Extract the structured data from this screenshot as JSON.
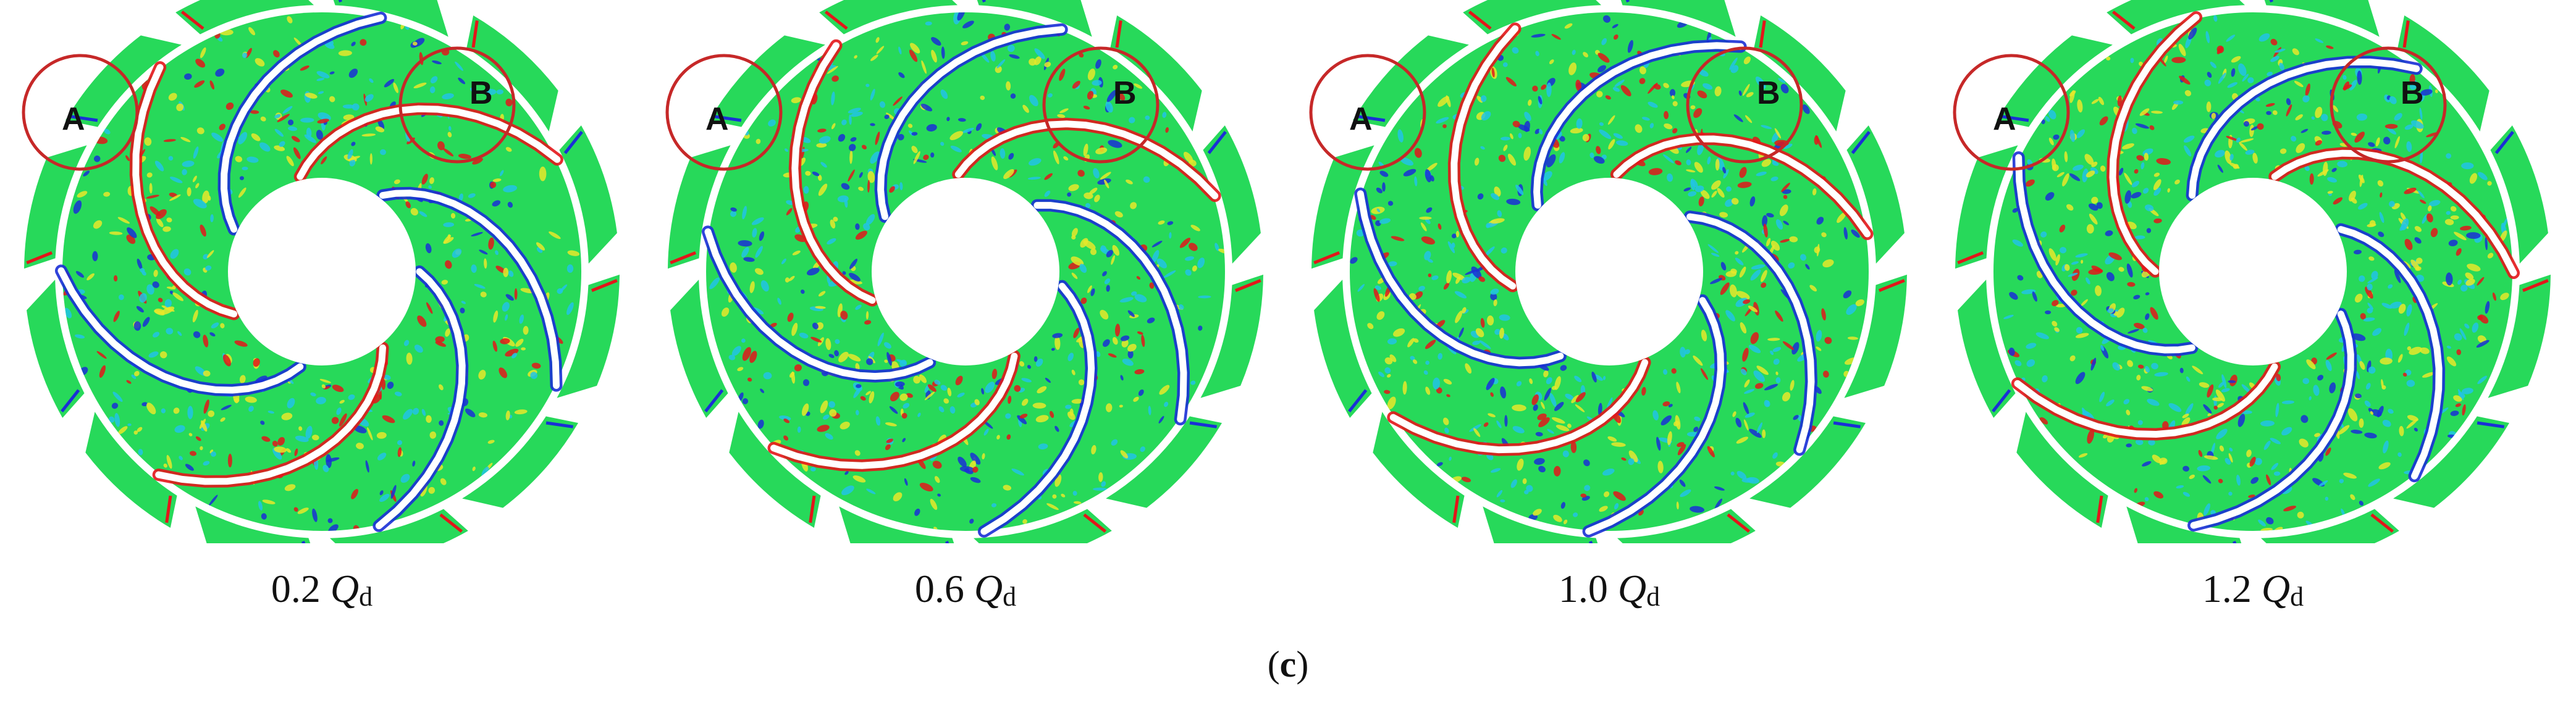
{
  "panels": [
    {
      "flow_value": "0.2",
      "flow_symbol": "Q",
      "flow_subscript": "d",
      "marker_a": "A",
      "marker_b": "B"
    },
    {
      "flow_value": "0.6",
      "flow_symbol": "Q",
      "flow_subscript": "d",
      "marker_a": "A",
      "marker_b": "B"
    },
    {
      "flow_value": "1.0",
      "flow_symbol": "Q",
      "flow_subscript": "d",
      "marker_a": "A",
      "marker_b": "B"
    },
    {
      "flow_value": "1.2",
      "flow_symbol": "Q",
      "flow_subscript": "d",
      "marker_a": "A",
      "marker_b": "B"
    }
  ],
  "sub_caption": {
    "open": "(",
    "letter": "c",
    "close": ")"
  },
  "colors": {
    "background_field": "#27d95a",
    "low": "#1a2fd6",
    "mid_low": "#22c3e6",
    "mid_high": "#e8e82a",
    "high": "#e3161a",
    "marker_circle": "#c62828",
    "blade": "#ffffff"
  }
}
